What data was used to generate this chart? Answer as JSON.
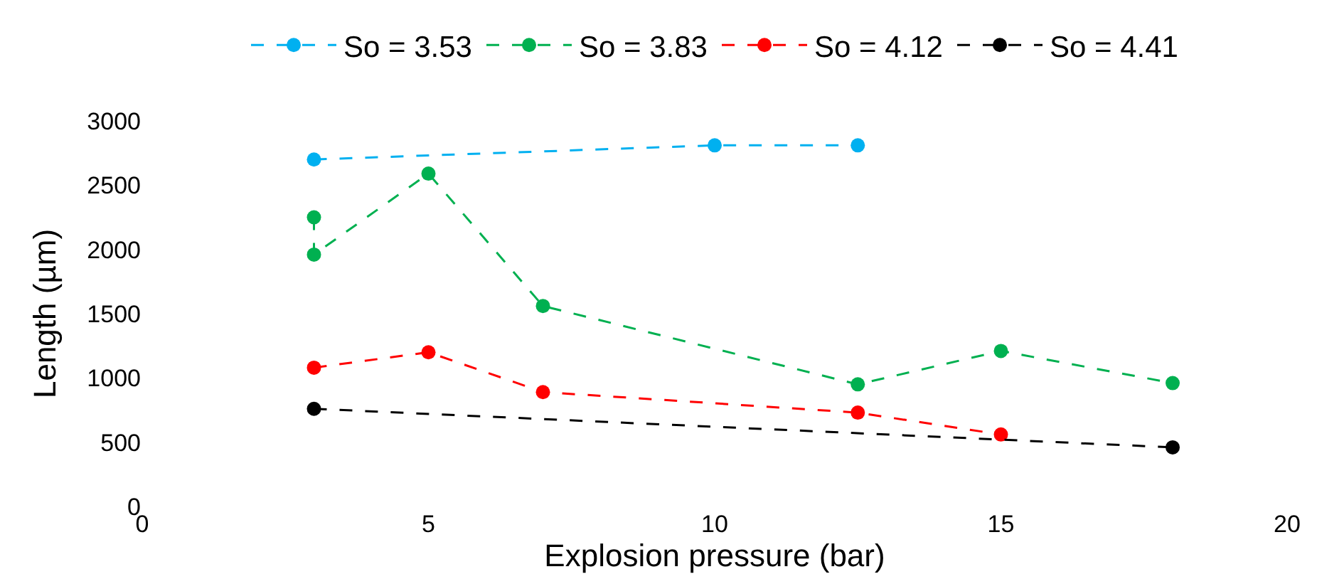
{
  "chart_data": {
    "type": "line",
    "xlabel": "Explosion pressure (bar)",
    "ylabel": "Length (µm)",
    "xlim": [
      0,
      20
    ],
    "xticks": [
      0,
      5,
      10,
      15,
      20
    ],
    "ylim": [
      0,
      3000
    ],
    "yticks": [
      0,
      500,
      1000,
      1500,
      2000,
      2500,
      3000
    ],
    "legend": "top",
    "marker": "circle",
    "line_style": "dashed",
    "series": [
      {
        "name": "So = 3.53",
        "color": "#00b0f0",
        "x": [
          3,
          10,
          12.5
        ],
        "values": [
          2700,
          2810,
          2810
        ]
      },
      {
        "name": "So = 3.83",
        "color": "#00b050",
        "x": [
          3,
          3,
          5,
          7,
          12.5,
          15,
          18
        ],
        "values": [
          2250,
          1960,
          2590,
          1560,
          950,
          1210,
          960
        ]
      },
      {
        "name": "So = 4.12",
        "color": "#ff0000",
        "x": [
          3,
          5,
          7,
          12.5,
          15
        ],
        "values": [
          1080,
          1200,
          890,
          730,
          560
        ]
      },
      {
        "name": "So = 4.41",
        "color": "#000000",
        "x": [
          3,
          18
        ],
        "values": [
          760,
          460
        ]
      }
    ]
  }
}
